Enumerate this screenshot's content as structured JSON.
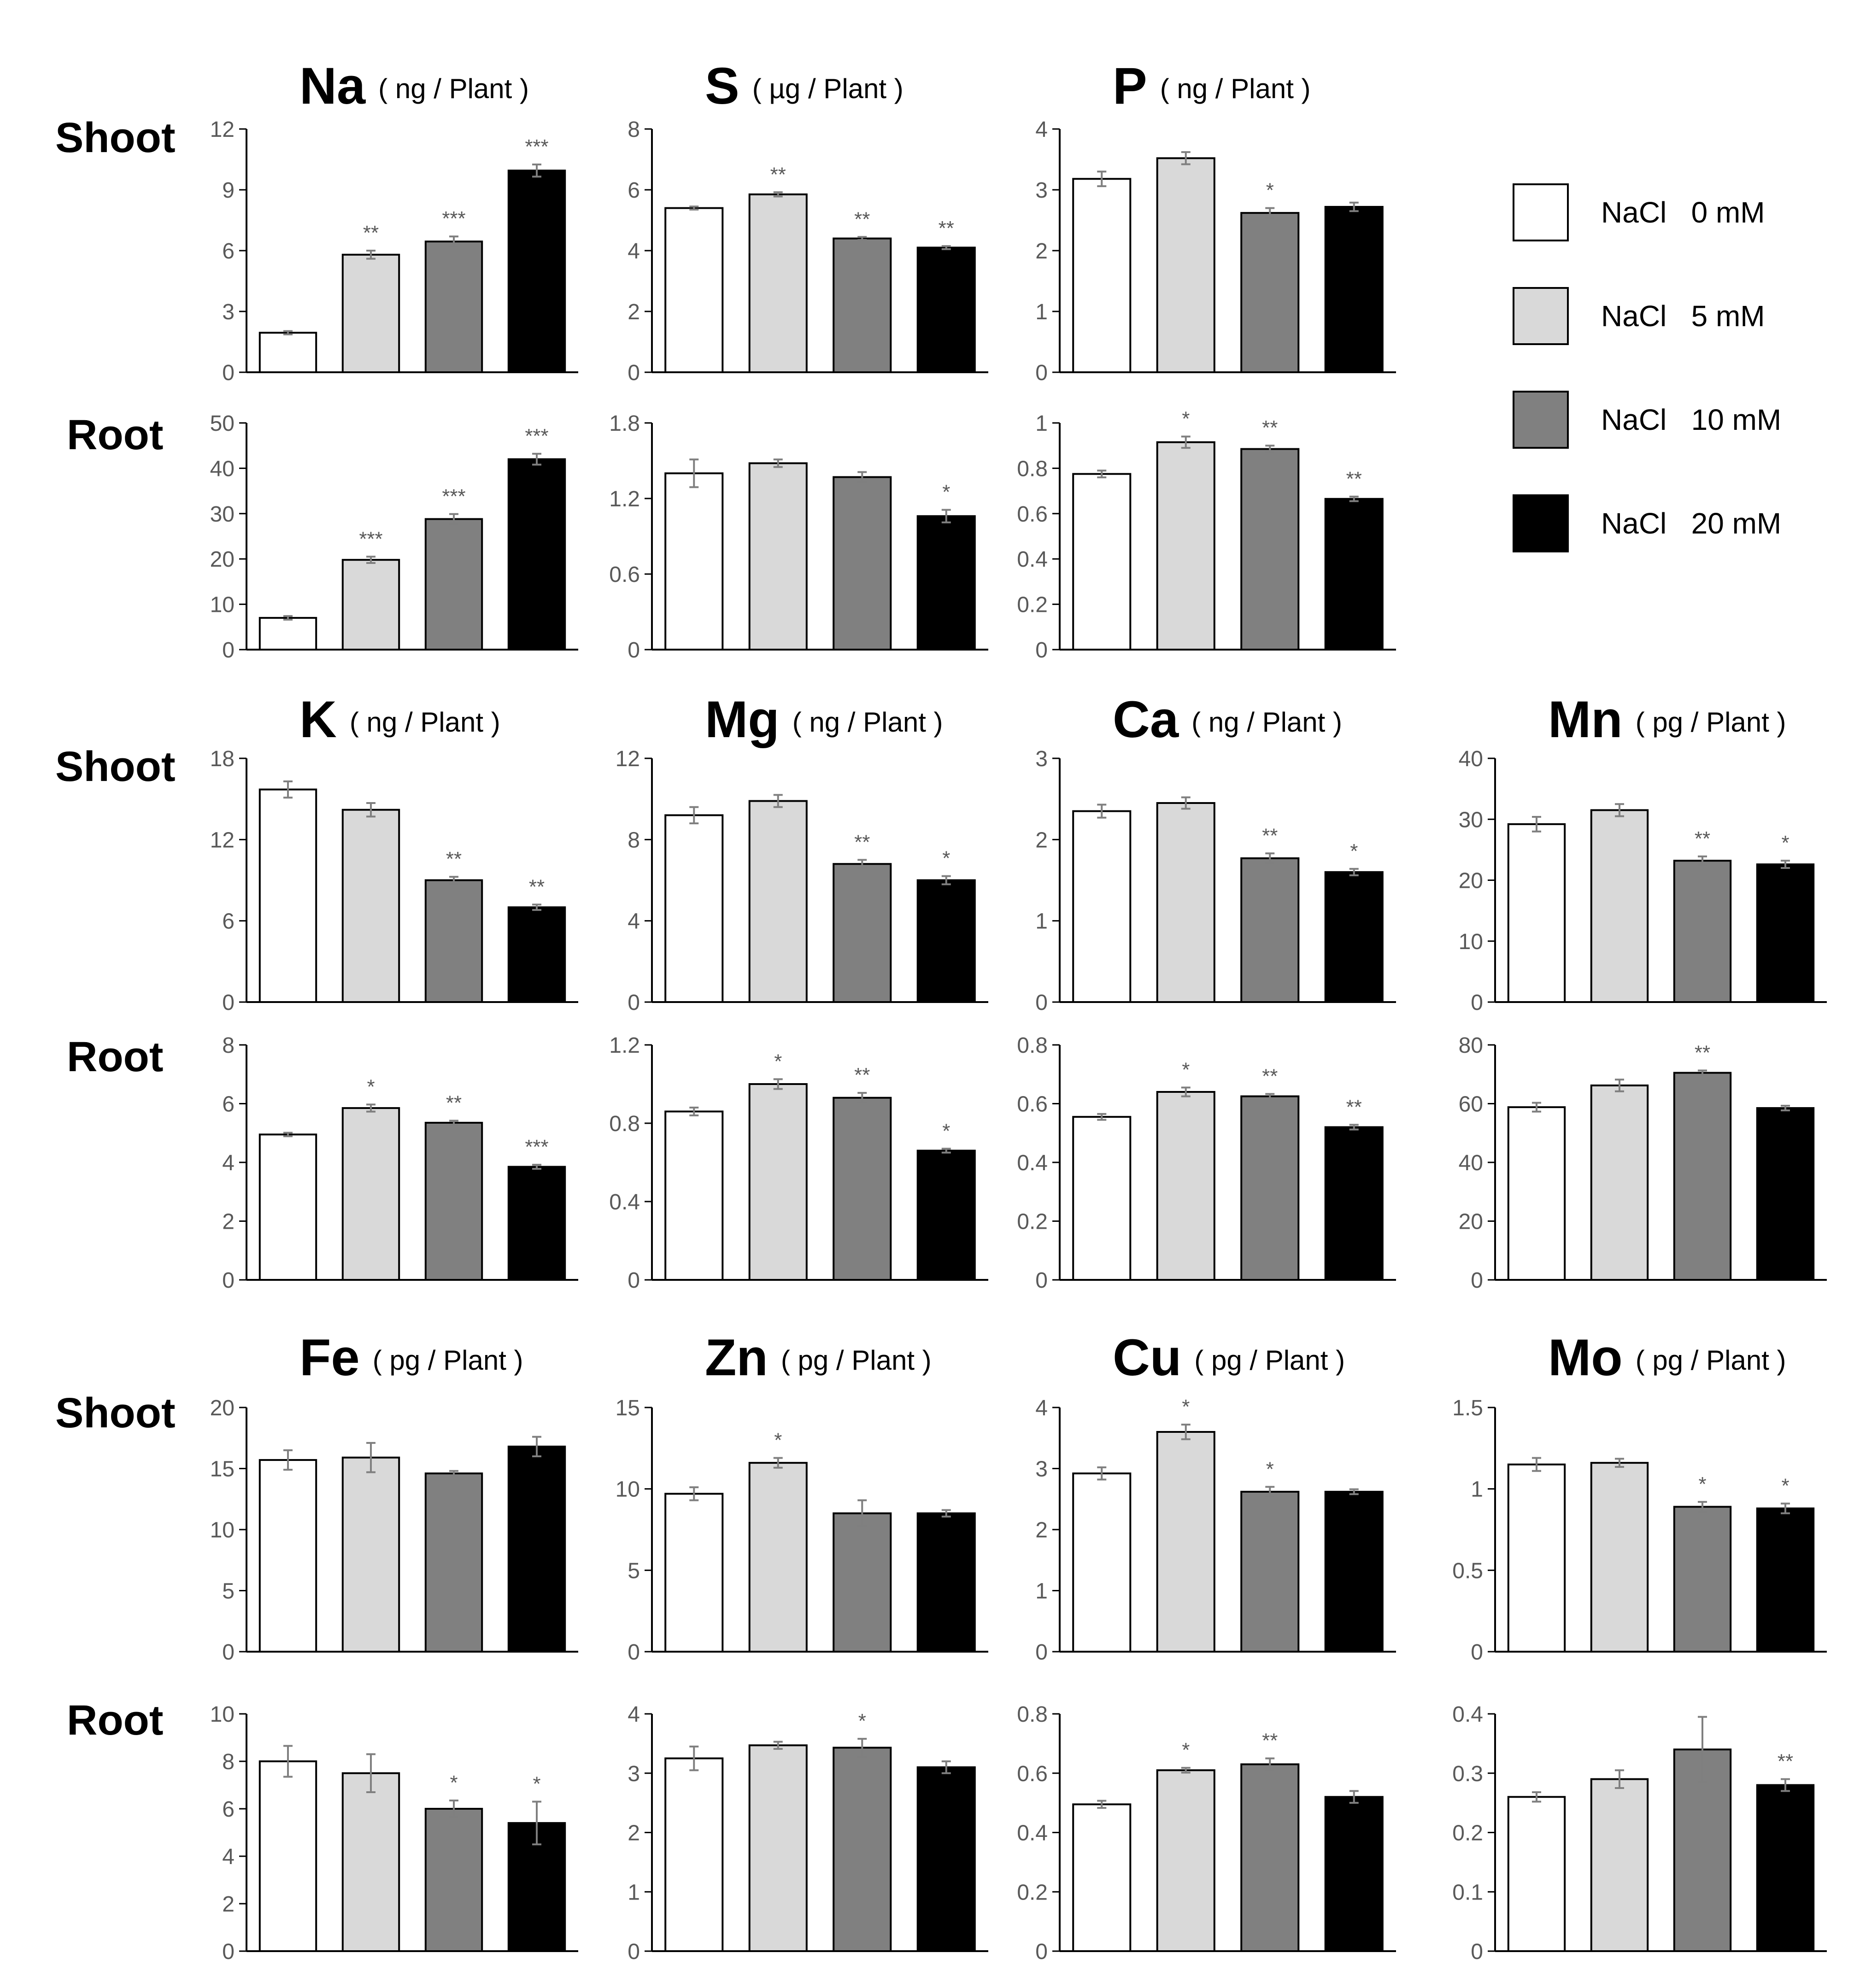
{
  "legend": [
    {
      "label": "NaCl   0 mM",
      "color": "#ffffff"
    },
    {
      "label": "NaCl   5 mM",
      "color": "#d9d9d9"
    },
    {
      "label": "NaCl   10 mM",
      "color": "#808080"
    },
    {
      "label": "NaCl   20 mM",
      "color": "#000000"
    }
  ],
  "row_labels": {
    "shoot": "Shoot",
    "root": "Root"
  },
  "chart_data": [
    {
      "type": "bar",
      "element": "Na",
      "unit": "( ng / Plant )",
      "tissue": "Shoot",
      "categories": [
        "NaCl 0 mM",
        "NaCl 5 mM",
        "NaCl 10 mM",
        "NaCl 20 mM"
      ],
      "values": [
        1.95,
        5.8,
        6.45,
        9.95
      ],
      "errors": [
        0.08,
        0.2,
        0.25,
        0.3
      ],
      "significance": [
        "",
        "**",
        "***",
        "***"
      ],
      "ylim": [
        0,
        12
      ],
      "yticks": [
        0,
        3,
        6,
        9,
        12
      ]
    },
    {
      "type": "bar",
      "element": "Na",
      "unit": "( ng / Plant )",
      "tissue": "Root",
      "categories": [
        "NaCl 0 mM",
        "NaCl 5 mM",
        "NaCl 10 mM",
        "NaCl 20 mM"
      ],
      "values": [
        7.0,
        19.8,
        28.8,
        42.0
      ],
      "errors": [
        0.4,
        0.7,
        1.1,
        1.2
      ],
      "significance": [
        "",
        "***",
        "***",
        "***"
      ],
      "ylim": [
        0,
        50
      ],
      "yticks": [
        0,
        10,
        20,
        30,
        40,
        50
      ]
    },
    {
      "type": "bar",
      "element": "S",
      "unit": "( µg / Plant )",
      "tissue": "Shoot",
      "categories": [
        "NaCl 0 mM",
        "NaCl 5 mM",
        "NaCl 10 mM",
        "NaCl 20 mM"
      ],
      "values": [
        5.4,
        5.85,
        4.4,
        4.1
      ],
      "errors": [
        0.05,
        0.07,
        0.05,
        0.05
      ],
      "significance": [
        "",
        "**",
        "**",
        "**"
      ],
      "ylim": [
        0,
        8
      ],
      "yticks": [
        0,
        2,
        4,
        6,
        8
      ]
    },
    {
      "type": "bar",
      "element": "S",
      "unit": "( µg / Plant )",
      "tissue": "Root",
      "categories": [
        "NaCl 0 mM",
        "NaCl 5 mM",
        "NaCl 10 mM",
        "NaCl 20 mM"
      ],
      "values": [
        1.4,
        1.48,
        1.37,
        1.06
      ],
      "errors": [
        0.11,
        0.03,
        0.04,
        0.05
      ],
      "significance": [
        "",
        "",
        "",
        "*"
      ],
      "ylim": [
        0,
        1.8
      ],
      "yticks": [
        0,
        0.6,
        1.2,
        1.8
      ]
    },
    {
      "type": "bar",
      "element": "P",
      "unit": "( ng / Plant )",
      "tissue": "Shoot",
      "categories": [
        "NaCl 0 mM",
        "NaCl 5 mM",
        "NaCl 10 mM",
        "NaCl 20 mM"
      ],
      "values": [
        3.18,
        3.52,
        2.62,
        2.72
      ],
      "errors": [
        0.12,
        0.1,
        0.08,
        0.07
      ],
      "significance": [
        "",
        "",
        "*",
        ""
      ],
      "ylim": [
        0,
        4
      ],
      "yticks": [
        0,
        1,
        2,
        3,
        4
      ]
    },
    {
      "type": "bar",
      "element": "P",
      "unit": "( ng / Plant )",
      "tissue": "Root",
      "categories": [
        "NaCl 0 mM",
        "NaCl 5 mM",
        "NaCl 10 mM",
        "NaCl 20 mM"
      ],
      "values": [
        0.775,
        0.915,
        0.885,
        0.665
      ],
      "errors": [
        0.015,
        0.025,
        0.015,
        0.01
      ],
      "significance": [
        "",
        "*",
        "**",
        "**"
      ],
      "ylim": [
        0,
        1
      ],
      "yticks": [
        0,
        0.2,
        0.4,
        0.6,
        0.8,
        1
      ]
    },
    {
      "type": "bar",
      "element": "K",
      "unit": "( ng / Plant )",
      "tissue": "Shoot",
      "categories": [
        "NaCl 0 mM",
        "NaCl 5 mM",
        "NaCl 10 mM",
        "NaCl 20 mM"
      ],
      "values": [
        15.7,
        14.2,
        9.0,
        7.0
      ],
      "errors": [
        0.6,
        0.5,
        0.25,
        0.2
      ],
      "significance": [
        "",
        "",
        "**",
        "**"
      ],
      "ylim": [
        0,
        18
      ],
      "yticks": [
        0,
        6,
        12,
        18
      ]
    },
    {
      "type": "bar",
      "element": "K",
      "unit": "( ng / Plant )",
      "tissue": "Root",
      "categories": [
        "NaCl 0 mM",
        "NaCl 5 mM",
        "NaCl 10 mM",
        "NaCl 20 mM"
      ],
      "values": [
        4.95,
        5.85,
        5.35,
        3.85
      ],
      "errors": [
        0.06,
        0.12,
        0.07,
        0.07
      ],
      "significance": [
        "",
        "*",
        "**",
        "***"
      ],
      "ylim": [
        0,
        8
      ],
      "yticks": [
        0,
        2,
        4,
        6,
        8
      ]
    },
    {
      "type": "bar",
      "element": "Mg",
      "unit": "( ng / Plant )",
      "tissue": "Shoot",
      "categories": [
        "NaCl 0 mM",
        "NaCl 5 mM",
        "NaCl 10 mM",
        "NaCl 20 mM"
      ],
      "values": [
        9.2,
        9.9,
        6.8,
        6.0
      ],
      "errors": [
        0.4,
        0.3,
        0.2,
        0.2
      ],
      "significance": [
        "",
        "",
        "**",
        "*"
      ],
      "ylim": [
        0,
        12
      ],
      "yticks": [
        0,
        4,
        8,
        12
      ]
    },
    {
      "type": "bar",
      "element": "Mg",
      "unit": "( ng / Plant )",
      "tissue": "Root",
      "categories": [
        "NaCl 0 mM",
        "NaCl 5 mM",
        "NaCl 10 mM",
        "NaCl 20 mM"
      ],
      "values": [
        0.86,
        1.0,
        0.93,
        0.66
      ],
      "errors": [
        0.02,
        0.025,
        0.025,
        0.01
      ],
      "significance": [
        "",
        "*",
        "**",
        "*"
      ],
      "ylim": [
        0,
        1.2
      ],
      "yticks": [
        0,
        0.4,
        0.8,
        1.2
      ]
    },
    {
      "type": "bar",
      "element": "Ca",
      "unit": "( ng / Plant )",
      "tissue": "Shoot",
      "categories": [
        "NaCl 0 mM",
        "NaCl 5 mM",
        "NaCl 10 mM",
        "NaCl 20 mM"
      ],
      "values": [
        2.35,
        2.45,
        1.77,
        1.6
      ],
      "errors": [
        0.08,
        0.07,
        0.06,
        0.04
      ],
      "significance": [
        "",
        "",
        "**",
        "*"
      ],
      "ylim": [
        0,
        3
      ],
      "yticks": [
        0,
        1,
        2,
        3
      ]
    },
    {
      "type": "bar",
      "element": "Ca",
      "unit": "( ng / Plant )",
      "tissue": "Root",
      "categories": [
        "NaCl 0 mM",
        "NaCl 5 mM",
        "NaCl 10 mM",
        "NaCl 20 mM"
      ],
      "values": [
        0.555,
        0.64,
        0.625,
        0.52
      ],
      "errors": [
        0.01,
        0.015,
        0.008,
        0.008
      ],
      "significance": [
        "",
        "*",
        "**",
        "**"
      ],
      "ylim": [
        0,
        0.8
      ],
      "yticks": [
        0,
        0.2,
        0.4,
        0.6,
        0.8
      ]
    },
    {
      "type": "bar",
      "element": "Mn",
      "unit": "( pg / Plant )",
      "tissue": "Shoot",
      "categories": [
        "NaCl 0 mM",
        "NaCl 5 mM",
        "NaCl 10 mM",
        "NaCl 20 mM"
      ],
      "values": [
        29.2,
        31.5,
        23.2,
        22.6
      ],
      "errors": [
        1.2,
        1.0,
        0.7,
        0.6
      ],
      "significance": [
        "",
        "",
        "**",
        "*"
      ],
      "ylim": [
        0,
        40
      ],
      "yticks": [
        0,
        10,
        20,
        30,
        40
      ]
    },
    {
      "type": "bar",
      "element": "Mn",
      "unit": "( pg / Plant )",
      "tissue": "Root",
      "categories": [
        "NaCl 0 mM",
        "NaCl 5 mM",
        "NaCl 10 mM",
        "NaCl 20 mM"
      ],
      "values": [
        58.8,
        66.2,
        70.5,
        58.5
      ],
      "errors": [
        1.5,
        2.0,
        0.8,
        0.8
      ],
      "significance": [
        "",
        "",
        "**",
        ""
      ],
      "ylim": [
        0,
        80
      ],
      "yticks": [
        0,
        20,
        40,
        60,
        80
      ]
    },
    {
      "type": "bar",
      "element": "Fe",
      "unit": "( pg / Plant )",
      "tissue": "Shoot",
      "categories": [
        "NaCl 0 mM",
        "NaCl 5 mM",
        "NaCl 10 mM",
        "NaCl 20 mM"
      ],
      "values": [
        15.7,
        15.9,
        14.6,
        16.8
      ],
      "errors": [
        0.8,
        1.2,
        0.2,
        0.8
      ],
      "significance": [
        "",
        "",
        "",
        ""
      ],
      "ylim": [
        0,
        20
      ],
      "yticks": [
        0,
        5,
        10,
        15,
        20
      ]
    },
    {
      "type": "bar",
      "element": "Fe",
      "unit": "( pg / Plant )",
      "tissue": "Root",
      "categories": [
        "NaCl 0 mM",
        "NaCl 5 mM",
        "NaCl 10 mM",
        "NaCl 20 mM"
      ],
      "values": [
        8.0,
        7.5,
        6.0,
        5.4
      ],
      "errors": [
        0.65,
        0.8,
        0.35,
        0.9
      ],
      "significance": [
        "",
        "",
        "*",
        "*"
      ],
      "ylim": [
        0,
        10
      ],
      "yticks": [
        0,
        2,
        4,
        6,
        8,
        10
      ]
    },
    {
      "type": "bar",
      "element": "Zn",
      "unit": "( pg / Plant )",
      "tissue": "Shoot",
      "categories": [
        "NaCl 0 mM",
        "NaCl 5 mM",
        "NaCl 10 mM",
        "NaCl 20 mM"
      ],
      "values": [
        9.7,
        11.6,
        8.5,
        8.5
      ],
      "errors": [
        0.4,
        0.3,
        0.8,
        0.2
      ],
      "significance": [
        "",
        "*",
        "",
        ""
      ],
      "ylim": [
        0,
        15
      ],
      "yticks": [
        0,
        5,
        10,
        15
      ]
    },
    {
      "type": "bar",
      "element": "Zn",
      "unit": "( pg / Plant )",
      "tissue": "Root",
      "categories": [
        "NaCl 0 mM",
        "NaCl 5 mM",
        "NaCl 10 mM",
        "NaCl 20 mM"
      ],
      "values": [
        3.25,
        3.47,
        3.43,
        3.1
      ],
      "errors": [
        0.2,
        0.06,
        0.15,
        0.1
      ],
      "significance": [
        "",
        "",
        "*",
        ""
      ],
      "ylim": [
        0,
        4
      ],
      "yticks": [
        0,
        1,
        2,
        3,
        4
      ]
    },
    {
      "type": "bar",
      "element": "Cu",
      "unit": "( pg / Plant )",
      "tissue": "Shoot",
      "categories": [
        "NaCl 0 mM",
        "NaCl 5 mM",
        "NaCl 10 mM",
        "NaCl 20 mM"
      ],
      "values": [
        2.92,
        3.6,
        2.62,
        2.62
      ],
      "errors": [
        0.1,
        0.12,
        0.08,
        0.04
      ],
      "significance": [
        "",
        "*",
        "*",
        ""
      ],
      "ylim": [
        0,
        4
      ],
      "yticks": [
        0,
        1,
        2,
        3,
        4
      ]
    },
    {
      "type": "bar",
      "element": "Cu",
      "unit": "( pg / Plant )",
      "tissue": "Root",
      "categories": [
        "NaCl 0 mM",
        "NaCl 5 mM",
        "NaCl 10 mM",
        "NaCl 20 mM"
      ],
      "values": [
        0.495,
        0.61,
        0.63,
        0.52
      ],
      "errors": [
        0.012,
        0.008,
        0.02,
        0.02
      ],
      "significance": [
        "",
        "*",
        "**",
        ""
      ],
      "ylim": [
        0,
        0.8
      ],
      "yticks": [
        0,
        0.2,
        0.4,
        0.6,
        0.8
      ]
    },
    {
      "type": "bar",
      "element": "Mo",
      "unit": "( pg / Plant )",
      "tissue": "Shoot",
      "categories": [
        "NaCl 0 mM",
        "NaCl 5 mM",
        "NaCl 10 mM",
        "NaCl 20 mM"
      ],
      "values": [
        1.15,
        1.16,
        0.89,
        0.88
      ],
      "errors": [
        0.04,
        0.025,
        0.03,
        0.03
      ],
      "significance": [
        "",
        "",
        "*",
        "*"
      ],
      "ylim": [
        0,
        1.5
      ],
      "yticks": [
        0,
        0.5,
        1,
        1.5
      ]
    },
    {
      "type": "bar",
      "element": "Mo",
      "unit": "( pg / Plant )",
      "tissue": "Root",
      "categories": [
        "NaCl 0 mM",
        "NaCl 5 mM",
        "NaCl 10 mM",
        "NaCl 20 mM"
      ],
      "values": [
        0.26,
        0.29,
        0.34,
        0.28
      ],
      "errors": [
        0.008,
        0.015,
        0.055,
        0.01
      ],
      "significance": [
        "",
        "",
        "",
        "**"
      ],
      "ylim": [
        0,
        0.4
      ],
      "yticks": [
        0,
        0.1,
        0.2,
        0.3,
        0.4
      ]
    }
  ]
}
